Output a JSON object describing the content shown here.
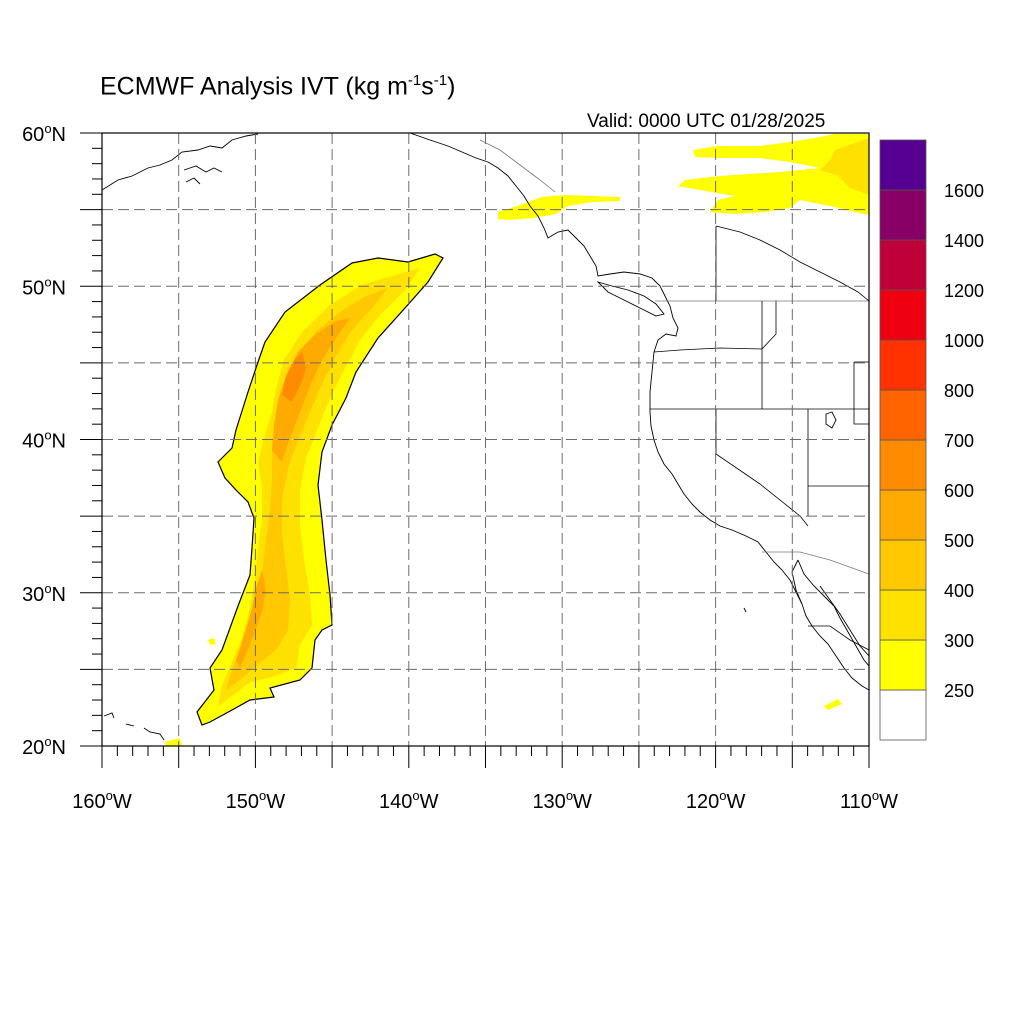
{
  "title": {
    "main": "ECMWF Analysis IVT (kg m",
    "sup1": "-1",
    "mid": "s",
    "sup2": "-1",
    "end": ")"
  },
  "valid_label": "Valid: 0000 UTC 01/28/2025",
  "map": {
    "lon_range": [
      -160,
      -110
    ],
    "lat_range": [
      20,
      60
    ],
    "lon_ticks": [
      {
        "value": -160,
        "label": "160°W"
      },
      {
        "value": -150,
        "label": "150°W"
      },
      {
        "value": -140,
        "label": "140°W"
      },
      {
        "value": -130,
        "label": "130°W"
      },
      {
        "value": -120,
        "label": "120°W"
      },
      {
        "value": -110,
        "label": "110°W"
      }
    ],
    "lat_ticks": [
      {
        "value": 20,
        "label": "20°N"
      },
      {
        "value": 30,
        "label": "30°N"
      },
      {
        "value": 40,
        "label": "40°N"
      },
      {
        "value": 50,
        "label": "50°N"
      },
      {
        "value": 60,
        "label": "60°N"
      }
    ],
    "grid_lons": [
      -155,
      -150,
      -145,
      -140,
      -135,
      -130,
      -125,
      -120,
      -115
    ],
    "grid_lats": [
      25,
      30,
      35,
      40,
      45,
      50,
      55
    ],
    "grid": true
  },
  "colorbar": {
    "levels": [
      "250",
      "300",
      "400",
      "500",
      "600",
      "700",
      "800",
      "1000",
      "1200",
      "1400",
      "1600"
    ],
    "colors": [
      "#ffffff",
      "#ffff00",
      "#ffe100",
      "#ffc800",
      "#ffaa00",
      "#ff8c00",
      "#ff6400",
      "#ff3200",
      "#ee0011",
      "#c00038",
      "#880065",
      "#550090"
    ]
  },
  "ivt_colors": {
    "c300": "#ffff00",
    "c400": "#ffe100",
    "c500": "#ffc800",
    "c600": "#ffaa00",
    "c700": "#ff8c00"
  }
}
